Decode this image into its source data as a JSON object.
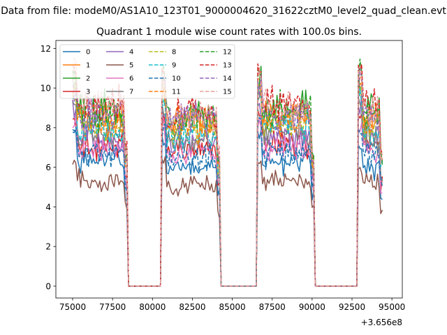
{
  "suptitle": "Data from file: modeM0/AS1A10_123T01_9000004620_31622cztM0_level2_quad_clean.evt",
  "chart_data": {
    "type": "line",
    "title": "Quadrant 1 module wise count rates with 100.0s bins.",
    "xlabel": "",
    "ylabel": "",
    "x_offset_label": "+3.656e8",
    "xlim": [
      73950,
      95650
    ],
    "ylim": [
      -0.6,
      12.4
    ],
    "xticks": [
      75000,
      77500,
      80000,
      82500,
      85000,
      87500,
      90000,
      92500,
      95000
    ],
    "xtick_labels": [
      "75000",
      "77500",
      "80000",
      "82500",
      "85000",
      "87500",
      "90000",
      "92500",
      "95000"
    ],
    "yticks": [
      0,
      2,
      4,
      6,
      8,
      10,
      12
    ],
    "ytick_labels": [
      "0",
      "2",
      "4",
      "6",
      "8",
      "10",
      "12"
    ],
    "grid": false,
    "legend_placement": "top-left",
    "legend_columns": 4,
    "x_start": 75000,
    "bin_width": 100,
    "n_bins": 195,
    "active_intervals": [
      [
        75000,
        78400
      ],
      [
        80600,
        84200
      ],
      [
        86600,
        90100
      ],
      [
        92900,
        94400
      ]
    ],
    "series": [
      {
        "name": "0",
        "color": "#1f77b4",
        "dashed": false,
        "levels": [
          6.3,
          6.0,
          6.3,
          6.0
        ]
      },
      {
        "name": "1",
        "color": "#ff7f0e",
        "dashed": false,
        "levels": [
          8.5,
          8.3,
          8.6,
          8.5
        ]
      },
      {
        "name": "2",
        "color": "#2ca02c",
        "dashed": false,
        "levels": [
          8.8,
          8.5,
          8.9,
          8.9
        ]
      },
      {
        "name": "3",
        "color": "#d62728",
        "dashed": false,
        "levels": [
          7.1,
          6.9,
          7.2,
          7.1
        ]
      },
      {
        "name": "4",
        "color": "#9467bd",
        "dashed": false,
        "levels": [
          7.4,
          7.2,
          7.5,
          7.4
        ]
      },
      {
        "name": "5",
        "color": "#8c564b",
        "dashed": false,
        "levels": [
          5.3,
          5.1,
          5.3,
          5.2
        ]
      },
      {
        "name": "6",
        "color": "#e377c2",
        "dashed": false,
        "levels": [
          7.0,
          6.8,
          7.0,
          6.9
        ]
      },
      {
        "name": "7",
        "color": "#7f7f7f",
        "dashed": false,
        "levels": [
          7.6,
          7.4,
          7.7,
          7.6
        ]
      },
      {
        "name": "8",
        "color": "#bcbd22",
        "dashed": true,
        "levels": [
          8.1,
          7.9,
          8.2,
          8.1
        ]
      },
      {
        "name": "9",
        "color": "#17becf",
        "dashed": true,
        "levels": [
          7.9,
          7.7,
          8.0,
          7.9
        ]
      },
      {
        "name": "10",
        "color": "#1f77b4",
        "dashed": true,
        "levels": [
          6.7,
          6.5,
          6.8,
          6.7
        ]
      },
      {
        "name": "11",
        "color": "#ff7f0e",
        "dashed": true,
        "levels": [
          8.3,
          8.1,
          8.4,
          8.3
        ]
      },
      {
        "name": "12",
        "color": "#2ca02c",
        "dashed": true,
        "levels": [
          8.7,
          8.6,
          8.8,
          8.8
        ]
      },
      {
        "name": "13",
        "color": "#d62728",
        "dashed": true,
        "levels": [
          9.0,
          8.8,
          9.2,
          9.2
        ]
      },
      {
        "name": "14",
        "color": "#9467bd",
        "dashed": true,
        "levels": [
          8.6,
          8.5,
          8.7,
          8.7
        ]
      },
      {
        "name": "15",
        "color": "#e8a09a",
        "dashed": true,
        "levels": [
          9.3,
          8.6,
          8.9,
          8.8
        ]
      }
    ]
  }
}
